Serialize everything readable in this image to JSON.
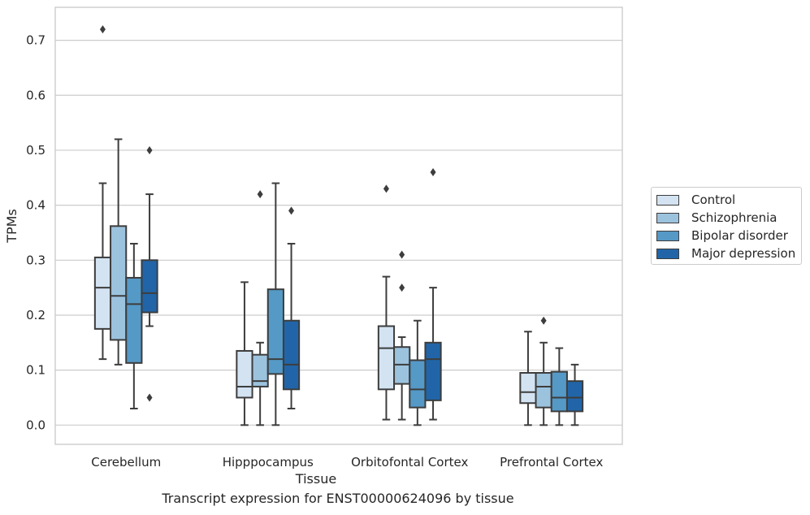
{
  "chart_data": {
    "type": "box",
    "ylabel": "TPMs",
    "xlabel": "Tissue",
    "caption": "Transcript expression for ENST00000624096 by tissue",
    "ylim": [
      -0.035,
      0.76
    ],
    "yticks": [
      "0.0",
      "0.1",
      "0.2",
      "0.3",
      "0.4",
      "0.5",
      "0.6",
      "0.7"
    ],
    "ytick_values": [
      0.0,
      0.1,
      0.2,
      0.3,
      0.4,
      0.5,
      0.6,
      0.7
    ],
    "grid": "horizontal",
    "legend_position": "right",
    "categories": [
      "Cerebellum",
      "Hipppocampus",
      "Orbitofontal Cortex",
      "Prefrontal Cortex"
    ],
    "series": [
      {
        "name": "Control",
        "color": "#d3e3f2",
        "boxes": [
          {
            "whislo": 0.12,
            "q1": 0.175,
            "med": 0.25,
            "q3": 0.305,
            "whishi": 0.44,
            "fliers": [
              0.72
            ]
          },
          {
            "whislo": 0.0,
            "q1": 0.05,
            "med": 0.07,
            "q3": 0.135,
            "whishi": 0.26,
            "fliers": []
          },
          {
            "whislo": 0.01,
            "q1": 0.065,
            "med": 0.14,
            "q3": 0.18,
            "whishi": 0.27,
            "fliers": [
              0.43
            ]
          },
          {
            "whislo": 0.0,
            "q1": 0.04,
            "med": 0.06,
            "q3": 0.095,
            "whishi": 0.17,
            "fliers": []
          }
        ]
      },
      {
        "name": "Schizophrenia",
        "color": "#9cc3de",
        "boxes": [
          {
            "whislo": 0.11,
            "q1": 0.155,
            "med": 0.235,
            "q3": 0.362,
            "whishi": 0.52,
            "fliers": []
          },
          {
            "whislo": 0.0,
            "q1": 0.07,
            "med": 0.08,
            "q3": 0.128,
            "whishi": 0.15,
            "fliers": [
              0.42
            ]
          },
          {
            "whislo": 0.01,
            "q1": 0.075,
            "med": 0.11,
            "q3": 0.142,
            "whishi": 0.16,
            "fliers": [
              0.31,
              0.25
            ]
          },
          {
            "whislo": 0.0,
            "q1": 0.032,
            "med": 0.07,
            "q3": 0.095,
            "whishi": 0.15,
            "fliers": [
              0.19
            ]
          }
        ]
      },
      {
        "name": "Bipolar disorder",
        "color": "#5599c6",
        "boxes": [
          {
            "whislo": 0.03,
            "q1": 0.113,
            "med": 0.22,
            "q3": 0.268,
            "whishi": 0.33,
            "fliers": []
          },
          {
            "whislo": 0.0,
            "q1": 0.093,
            "med": 0.12,
            "q3": 0.247,
            "whishi": 0.44,
            "fliers": []
          },
          {
            "whislo": 0.0,
            "q1": 0.032,
            "med": 0.065,
            "q3": 0.118,
            "whishi": 0.19,
            "fliers": []
          },
          {
            "whislo": 0.0,
            "q1": 0.025,
            "med": 0.05,
            "q3": 0.097,
            "whishi": 0.14,
            "fliers": []
          }
        ]
      },
      {
        "name": "Major depression",
        "color": "#2165a8",
        "boxes": [
          {
            "whislo": 0.18,
            "q1": 0.205,
            "med": 0.24,
            "q3": 0.3,
            "whishi": 0.42,
            "fliers": [
              0.5,
              0.05
            ]
          },
          {
            "whislo": 0.03,
            "q1": 0.065,
            "med": 0.11,
            "q3": 0.19,
            "whishi": 0.33,
            "fliers": [
              0.39
            ]
          },
          {
            "whislo": 0.01,
            "q1": 0.045,
            "med": 0.12,
            "q3": 0.15,
            "whishi": 0.25,
            "fliers": [
              0.46
            ]
          },
          {
            "whislo": 0.0,
            "q1": 0.025,
            "med": 0.05,
            "q3": 0.08,
            "whishi": 0.11,
            "fliers": []
          }
        ]
      }
    ]
  }
}
